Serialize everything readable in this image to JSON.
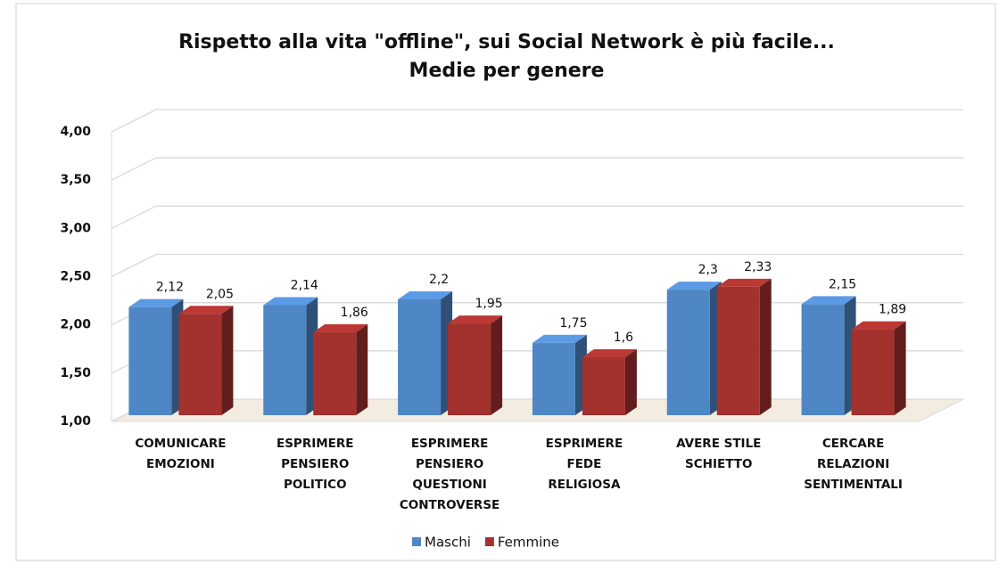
{
  "chart_data": {
    "type": "bar",
    "title": "Rispetto alla vita \"offline\",  sui Social Network è più facile...",
    "subtitle": "Medie per genere",
    "categories": [
      "COMUNICARE\nEMOZIONI",
      "ESPRIMERE\nPENSIERO\nPOLITICO",
      "ESPRIMERE\nPENSIERO\nQUESTIONI\nCONTROVERSE",
      "ESPRIMERE\nFEDE\nRELIGIOSA",
      "AVERE STILE\nSCHIETTO",
      "CERCARE\nRELAZIONI\nSENTIMENTALI"
    ],
    "series": [
      {
        "name": "Maschi",
        "color": "#4f86c6",
        "values": [
          2.12,
          2.14,
          2.2,
          1.75,
          2.3,
          2.15
        ],
        "value_labels": [
          "2,12",
          "2,14",
          "2,2",
          "1,75",
          "2,3",
          "2,15"
        ]
      },
      {
        "name": "Femmine",
        "color": "#a3312e",
        "values": [
          2.05,
          1.86,
          1.95,
          1.6,
          2.33,
          1.89
        ],
        "value_labels": [
          "2,05",
          "1,86",
          "1,95",
          "1,6",
          "2,33",
          "1,89"
        ]
      }
    ],
    "ylim": [
      1,
      4
    ],
    "yticks": [
      {
        "value": 1,
        "label": "1,00"
      },
      {
        "value": 1.5,
        "label": "1,50"
      },
      {
        "value": 2,
        "label": "2,00"
      },
      {
        "value": 2.5,
        "label": "2,50"
      },
      {
        "value": 3,
        "label": "3,00"
      },
      {
        "value": 3.5,
        "label": "3,50"
      },
      {
        "value": 4,
        "label": "4,00"
      }
    ],
    "grid": true,
    "legend": "bottom"
  }
}
